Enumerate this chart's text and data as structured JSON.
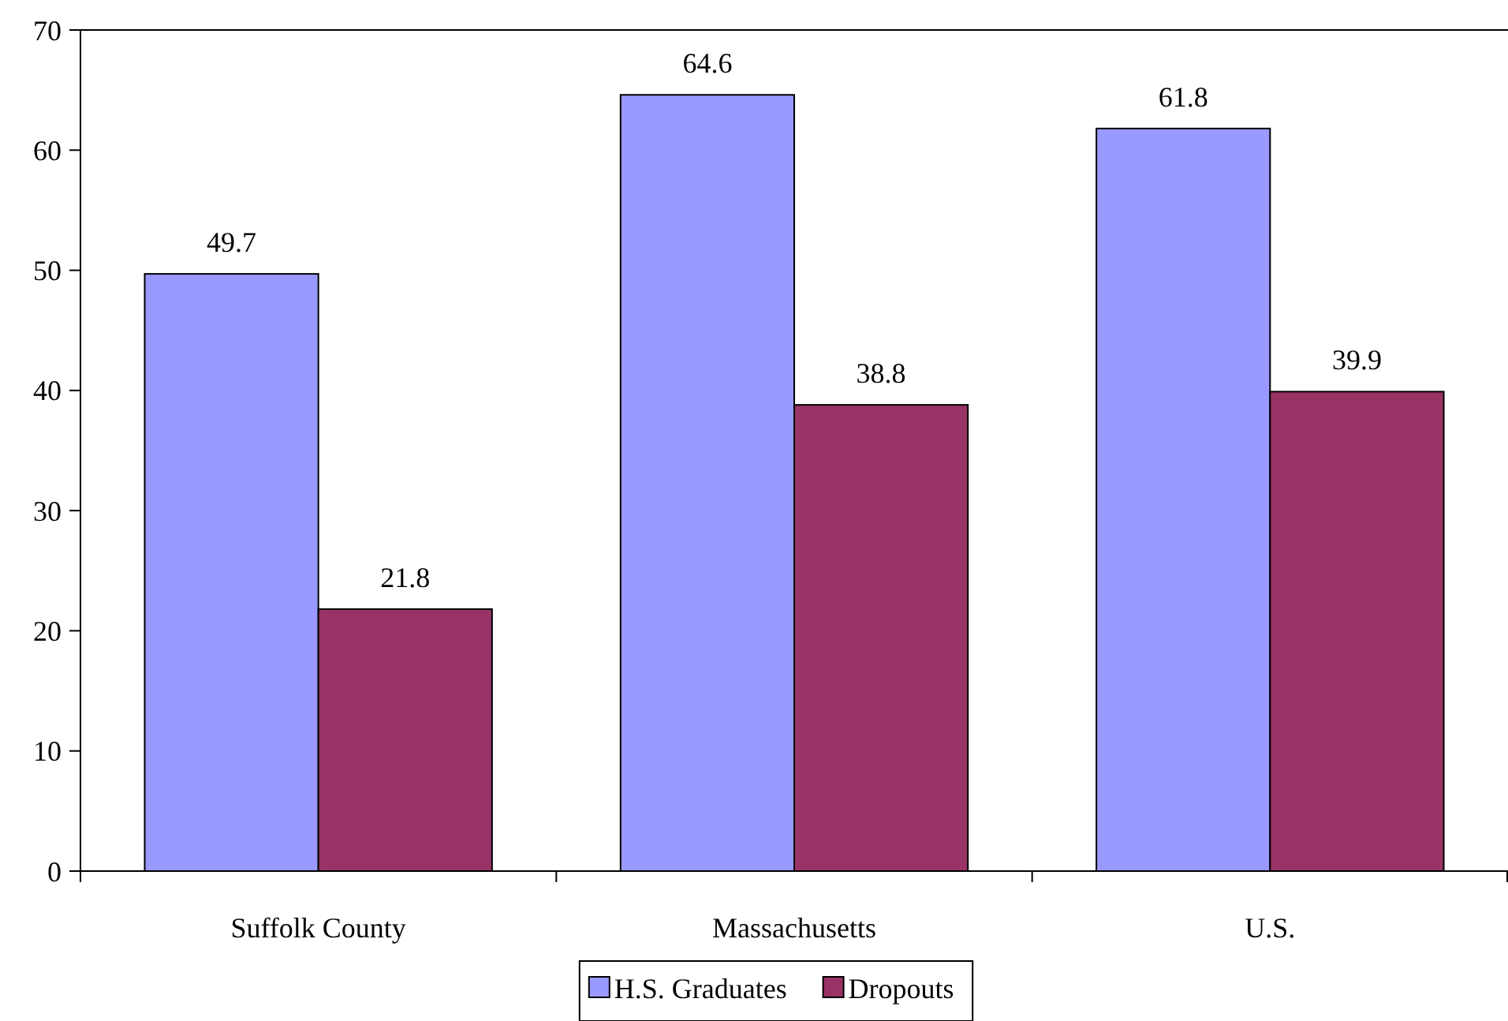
{
  "chart_data": {
    "type": "bar",
    "categories": [
      "Suffolk County",
      "Massachusetts",
      "U.S."
    ],
    "series": [
      {
        "name": "H.S. Graduates",
        "color": "#9999ff",
        "values": [
          49.7,
          64.6,
          61.8
        ]
      },
      {
        "name": "Dropouts",
        "color": "#993366",
        "values": [
          21.8,
          38.8,
          39.9
        ]
      }
    ],
    "ylim": [
      0,
      70
    ],
    "yticks": [
      0,
      10,
      20,
      30,
      40,
      50,
      60,
      70
    ],
    "grid": false,
    "legend": "bottom",
    "data_labels": true
  }
}
